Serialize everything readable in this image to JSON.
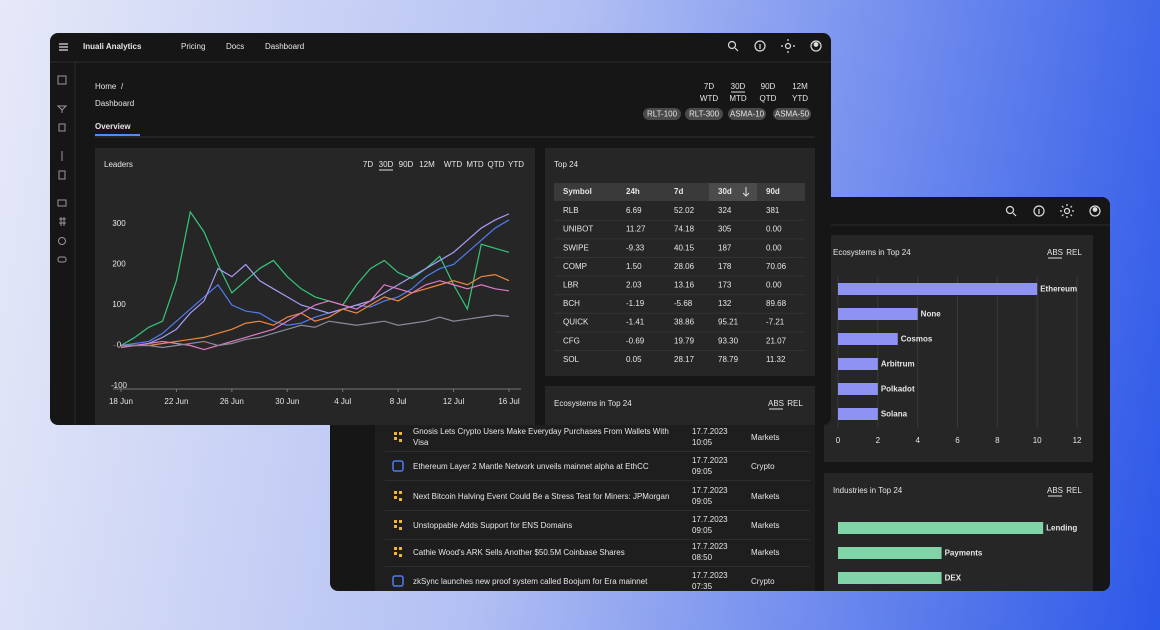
{
  "app": {
    "brand": "Inuali Analytics",
    "nav": [
      "Pricing",
      "Docs",
      "Dashboard"
    ],
    "breadcrumb": "Home",
    "breadcrumb_separator": "/",
    "title": "Dashboard",
    "tab": "Overview",
    "periods": [
      [
        "7D",
        "WTD"
      ],
      [
        "30D",
        "MTD"
      ],
      [
        "90D",
        "QTD"
      ],
      [
        "12M",
        "YTD"
      ]
    ],
    "badges": [
      "RLT-100",
      "RLT-300",
      "ASMA-10",
      "ASMA-50"
    ]
  },
  "chart_data": [
    {
      "type": "line",
      "title": "Leaders",
      "ranges": [
        "7D",
        "30D",
        "90D",
        "12M",
        "WTD",
        "MTD",
        "QTD",
        "YTD"
      ],
      "x": [
        "18 Jun",
        null,
        null,
        null,
        "22 Jun",
        null,
        null,
        null,
        "26 Jun",
        null,
        null,
        null,
        "30 Jun",
        null,
        null,
        null,
        "4 Jul",
        null,
        null,
        null,
        "8 Jul",
        null,
        null,
        null,
        "12 Jul",
        null,
        null,
        null,
        "16 Jul"
      ],
      "ylim": [
        -100,
        340
      ],
      "yticks": [
        -100,
        0,
        100,
        200,
        300
      ],
      "series": [
        {
          "color": "#34c77b",
          "values": [
            0,
            20,
            45,
            60,
            160,
            330,
            280,
            200,
            130,
            160,
            190,
            210,
            170,
            140,
            120,
            110,
            100,
            150,
            190,
            210,
            180,
            165,
            190,
            220,
            150,
            90,
            250,
            240,
            230
          ]
        },
        {
          "color": "#4f7cf0",
          "values": [
            0,
            5,
            10,
            30,
            60,
            90,
            120,
            150,
            100,
            85,
            80,
            60,
            50,
            55,
            70,
            80,
            90,
            100,
            95,
            110,
            120,
            140,
            170,
            190,
            200,
            230,
            260,
            290,
            310
          ]
        },
        {
          "color": "#a89cf5",
          "values": [
            0,
            0,
            5,
            20,
            40,
            80,
            110,
            190,
            170,
            200,
            160,
            140,
            120,
            100,
            90,
            80,
            90,
            100,
            110,
            130,
            150,
            170,
            190,
            210,
            230,
            260,
            290,
            310,
            325
          ]
        },
        {
          "color": "#f0883e",
          "values": [
            0,
            0,
            0,
            5,
            10,
            15,
            20,
            30,
            40,
            55,
            60,
            50,
            70,
            80,
            60,
            70,
            90,
            80,
            100,
            120,
            110,
            130,
            140,
            150,
            160,
            150,
            170,
            175,
            160
          ]
        },
        {
          "color": "#e07bc4",
          "values": [
            -5,
            0,
            5,
            10,
            5,
            0,
            -10,
            0,
            10,
            20,
            30,
            40,
            60,
            80,
            100,
            110,
            100,
            90,
            110,
            150,
            140,
            130,
            150,
            160,
            150,
            140,
            150,
            140,
            135
          ]
        },
        {
          "color": "#8a8a9a",
          "values": [
            0,
            0,
            0,
            -5,
            0,
            5,
            10,
            0,
            5,
            15,
            20,
            30,
            40,
            50,
            45,
            60,
            55,
            50,
            55,
            60,
            50,
            55,
            60,
            70,
            60,
            65,
            70,
            75,
            72
          ]
        }
      ]
    },
    {
      "type": "barh",
      "title": "Ecosystems in Top 24",
      "toggles": [
        "ABS",
        "REL"
      ],
      "categories": [
        "Ethereum",
        "None",
        "Cosmos",
        "Arbitrum",
        "Polkadot",
        "Solana"
      ],
      "values": [
        10,
        4,
        3,
        2,
        2,
        2
      ],
      "color": "#8e92f2",
      "xlim": [
        0,
        12.5
      ],
      "xticks": [
        0,
        2,
        4,
        6,
        8,
        10,
        12
      ],
      "grid": true
    },
    {
      "type": "barh",
      "title": "Industries in Top 24",
      "toggles": [
        "ABS",
        "REL"
      ],
      "categories": [
        "Lending",
        "Payments",
        "DEX"
      ],
      "values": [
        10.3,
        5.2,
        5.2
      ],
      "color": "#80d4a8",
      "xlim": [
        0,
        12.5
      ],
      "grid": false
    }
  ],
  "top24": {
    "title": "Top 24",
    "columns": [
      "Symbol",
      "24h",
      "7d",
      "30d",
      "90d"
    ],
    "rows": [
      [
        "RLB",
        "6.69",
        "52.02",
        "324",
        "381"
      ],
      [
        "UNIBOT",
        "11.27",
        "74.18",
        "305",
        "0.00"
      ],
      [
        "SWIPE",
        "-9.33",
        "40.15",
        "187",
        "0.00"
      ],
      [
        "COMP",
        "1.50",
        "28.06",
        "178",
        "70.06"
      ],
      [
        "LBR",
        "2.03",
        "13.16",
        "173",
        "0.00"
      ],
      [
        "BCH",
        "-1.19",
        "-5.68",
        "132",
        "89.68"
      ],
      [
        "QUICK",
        "-1.41",
        "38.86",
        "95.21",
        "-7.21"
      ],
      [
        "CFG",
        "-0.69",
        "19.79",
        "93.30",
        "21.07"
      ],
      [
        "SOL",
        "0.05",
        "28.17",
        "78.79",
        "11.32"
      ]
    ]
  },
  "news": {
    "title": "Ecosystems in Top 24",
    "toggles": [
      "ABS",
      "REL"
    ],
    "items": [
      {
        "title": "Gnosis Lets Crypto Users Make Everyday Purchases From Wallets With Visa",
        "date": "17.7.2023",
        "time": "10:05",
        "category": "Markets"
      },
      {
        "title": "Ethereum Layer 2 Mantle Network unveils mainnet alpha at EthCC",
        "date": "17.7.2023",
        "time": "09:05",
        "category": "Crypto"
      },
      {
        "title": "Next Bitcoin Halving Event Could Be a Stress Test for Miners: JPMorgan",
        "date": "17.7.2023",
        "time": "09:05",
        "category": "Markets"
      },
      {
        "title": "Unstoppable Adds Support for ENS Domains",
        "date": "17.7.2023",
        "time": "09:05",
        "category": "Markets"
      },
      {
        "title": "Cathie Wood's ARK Sells Another $50.5M Coinbase Shares",
        "date": "17.7.2023",
        "time": "08:50",
        "category": "Markets"
      },
      {
        "title": "zkSync launches new proof system called Boojum for Era mainnet",
        "date": "17.7.2023",
        "time": "07:35",
        "category": "Crypto"
      }
    ]
  }
}
